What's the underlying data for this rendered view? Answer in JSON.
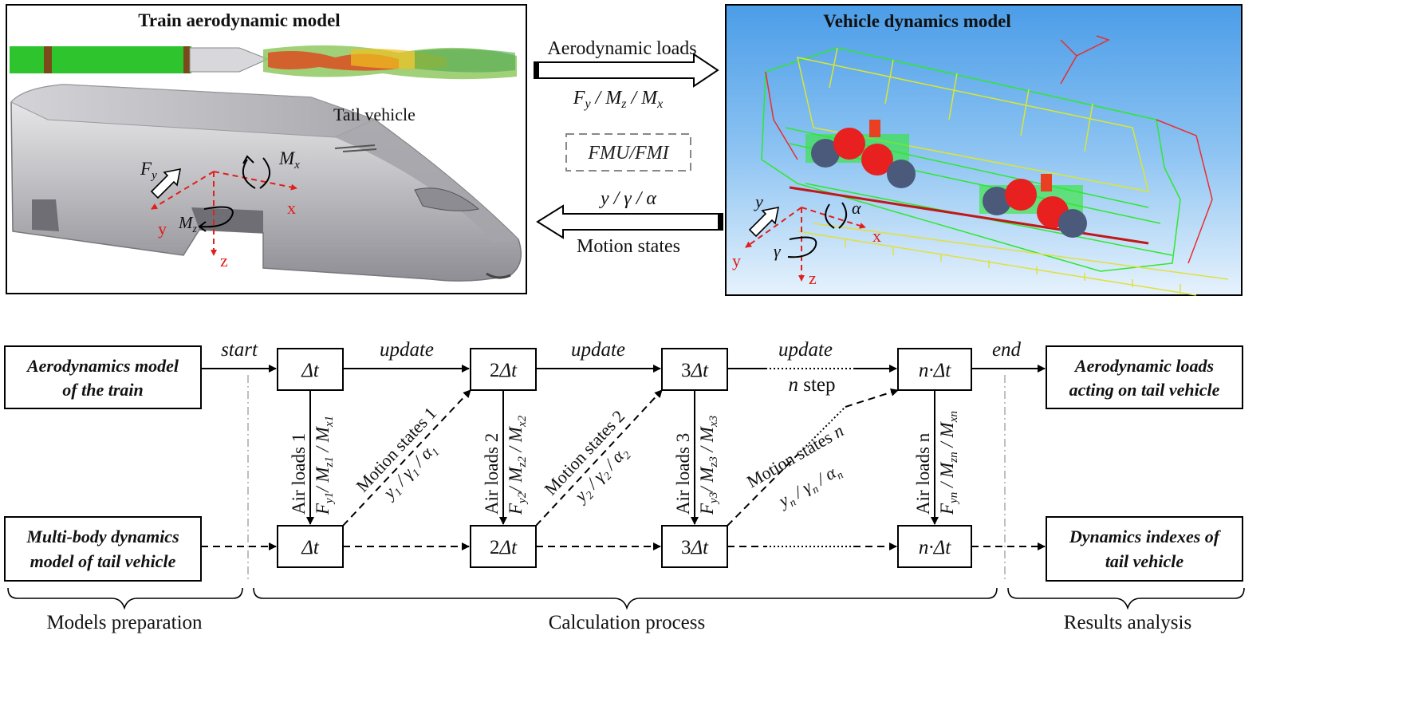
{
  "top": {
    "aero_panel": {
      "title": "Train aerodynamic model",
      "tail_label": "Tail vehicle",
      "axes": {
        "x": "x",
        "y": "y",
        "z": "z"
      },
      "loads": {
        "Fy": "F",
        "Fy_sub": "y",
        "Mx": "M",
        "Mx_sub": "x",
        "Mz": "M",
        "Mz_sub": "z"
      }
    },
    "dyn_panel": {
      "title": "Vehicle dynamics model",
      "axes": {
        "x": "x",
        "y": "y",
        "z": "z"
      },
      "states": {
        "y": "y",
        "gamma": "γ",
        "alpha": "α"
      }
    },
    "coupling": {
      "aero_loads_label": "Aerodynamic loads",
      "aero_loads_vars": "F",
      "aero_loads_vars_parts": [
        "F",
        "y",
        " / M",
        "z",
        " / M",
        "x"
      ],
      "fmu_label": "FMU/FMI",
      "motion_vars": "y / γ / α",
      "motion_label": "Motion states"
    }
  },
  "flow": {
    "start_label": "start",
    "end_label": "end",
    "update_label": "update",
    "n_step_label_n": "n",
    "n_step_label": " step",
    "left_top": [
      "Aerodynamics model",
      "of the train"
    ],
    "left_bottom": [
      "Multi-body dynamics",
      "model of tail vehicle"
    ],
    "right_top": [
      "Aerodynamic loads",
      "acting on tail vehicle"
    ],
    "right_bottom": [
      "Dynamics indexes of",
      "tail vehicle"
    ],
    "steps": [
      {
        "pre": "",
        "sym": "Δt"
      },
      {
        "pre": "2",
        "sym": "Δt"
      },
      {
        "pre": "3",
        "sym": "Δt"
      },
      {
        "pre": "n·",
        "sym": "Δt"
      }
    ],
    "air_loads": [
      {
        "label": "Air loads 1",
        "vars": [
          "F",
          "y1",
          "/ M",
          "z1",
          " / M",
          "x1"
        ]
      },
      {
        "label": "Air loads 2",
        "vars": [
          "F",
          "y2",
          "/ M",
          "z2",
          " / M",
          "x2"
        ]
      },
      {
        "label": "Air loads 3",
        "vars": [
          "F",
          "y3",
          "/ M",
          "z3",
          " / M",
          "x3"
        ]
      },
      {
        "label": "Air loads n",
        "vars": [
          "F",
          "yn",
          " / M",
          "zn",
          " / M",
          "xn"
        ]
      }
    ],
    "motion_states": [
      {
        "label": "Motion states 1",
        "vars": [
          "y",
          "1",
          " / γ",
          "1",
          " / α",
          "1"
        ]
      },
      {
        "label": "Motion states 2",
        "vars": [
          "y",
          "2",
          " / γ",
          "2",
          " / α",
          "2"
        ]
      },
      {
        "label": "Motion states n",
        "vars": [
          "y",
          "n",
          " / γ",
          "n",
          " / α",
          "n"
        ]
      }
    ]
  },
  "phases": {
    "models_preparation": "Models preparation",
    "calculation_process": "Calculation process",
    "results_analysis": "Results analysis"
  },
  "colors": {
    "axis_red": "#e0201c",
    "train_silver": "#b8b8bc",
    "flow_green": "#2ec42e",
    "sky_blue": "#5ea9ea"
  }
}
